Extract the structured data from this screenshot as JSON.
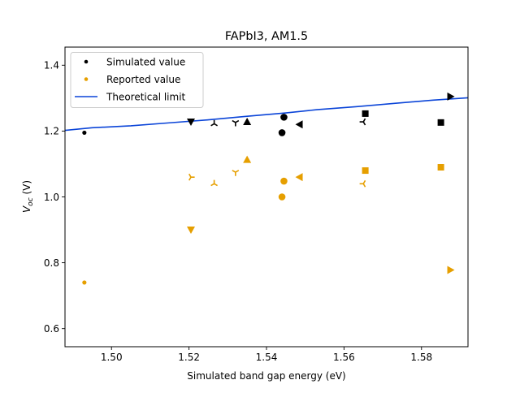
{
  "chart_data": {
    "type": "scatter",
    "title": "FAPbI3, AM1.5",
    "xlabel": "Simulated band gap energy (eV)",
    "ylabel_main": "V",
    "ylabel_sub": "oc",
    "ylabel_unit": " (V)",
    "xlim": [
      1.488,
      1.592
    ],
    "ylim": [
      0.545,
      1.455
    ],
    "xticks": [
      1.5,
      1.52,
      1.54,
      1.56,
      1.58
    ],
    "xtick_labels": [
      "1.50",
      "1.52",
      "1.54",
      "1.56",
      "1.58"
    ],
    "yticks": [
      0.6,
      0.8,
      1.0,
      1.2,
      1.4
    ],
    "ytick_labels": [
      "0.6",
      "0.8",
      "1.0",
      "1.2",
      "1.4"
    ],
    "grid": false,
    "legend_placement": "top-left",
    "colors": {
      "simulated": "#000000",
      "reported": "#e69f00",
      "theoretical": "#0a44d8"
    },
    "series": [
      {
        "name": "Simulated value",
        "color": "#000000",
        "points": [
          {
            "x": 1.493,
            "y": 1.195,
            "marker": "point"
          },
          {
            "x": 1.5205,
            "y": 1.228,
            "marker": "triangle-down"
          },
          {
            "x": 1.5265,
            "y": 1.222,
            "marker": "tri-up"
          },
          {
            "x": 1.532,
            "y": 1.226,
            "marker": "tri-down"
          },
          {
            "x": 1.535,
            "y": 1.228,
            "marker": "triangle-up"
          },
          {
            "x": 1.544,
            "y": 1.195,
            "marker": "circle"
          },
          {
            "x": 1.5445,
            "y": 1.242,
            "marker": "circle"
          },
          {
            "x": 1.5485,
            "y": 1.22,
            "marker": "triangle-left"
          },
          {
            "x": 1.565,
            "y": 1.228,
            "marker": "tri-left"
          },
          {
            "x": 1.5655,
            "y": 1.253,
            "marker": "square"
          },
          {
            "x": 1.585,
            "y": 1.226,
            "marker": "square"
          },
          {
            "x": 1.5875,
            "y": 1.305,
            "marker": "triangle-right"
          }
        ]
      },
      {
        "name": "Reported value",
        "color": "#e69f00",
        "points": [
          {
            "x": 1.493,
            "y": 0.74,
            "marker": "point"
          },
          {
            "x": 1.5205,
            "y": 0.9,
            "marker": "triangle-down"
          },
          {
            "x": 1.5205,
            "y": 1.06,
            "marker": "tri-right"
          },
          {
            "x": 1.5265,
            "y": 1.04,
            "marker": "tri-up"
          },
          {
            "x": 1.532,
            "y": 1.075,
            "marker": "tri-down"
          },
          {
            "x": 1.535,
            "y": 1.113,
            "marker": "triangle-up"
          },
          {
            "x": 1.544,
            "y": 1.0,
            "marker": "circle"
          },
          {
            "x": 1.5445,
            "y": 1.048,
            "marker": "circle"
          },
          {
            "x": 1.5485,
            "y": 1.06,
            "marker": "triangle-left"
          },
          {
            "x": 1.565,
            "y": 1.04,
            "marker": "tri-left"
          },
          {
            "x": 1.5655,
            "y": 1.08,
            "marker": "square"
          },
          {
            "x": 1.585,
            "y": 1.09,
            "marker": "square"
          },
          {
            "x": 1.5875,
            "y": 0.778,
            "marker": "triangle-right"
          }
        ]
      },
      {
        "name": "Theoretical limit",
        "color": "#0a44d8",
        "type": "line",
        "x": [
          1.488,
          1.495,
          1.505,
          1.515,
          1.525,
          1.535,
          1.545,
          1.553,
          1.563,
          1.573,
          1.583,
          1.592
        ],
        "y": [
          1.202,
          1.21,
          1.216,
          1.225,
          1.234,
          1.245,
          1.255,
          1.265,
          1.274,
          1.284,
          1.294,
          1.301
        ]
      }
    ]
  }
}
